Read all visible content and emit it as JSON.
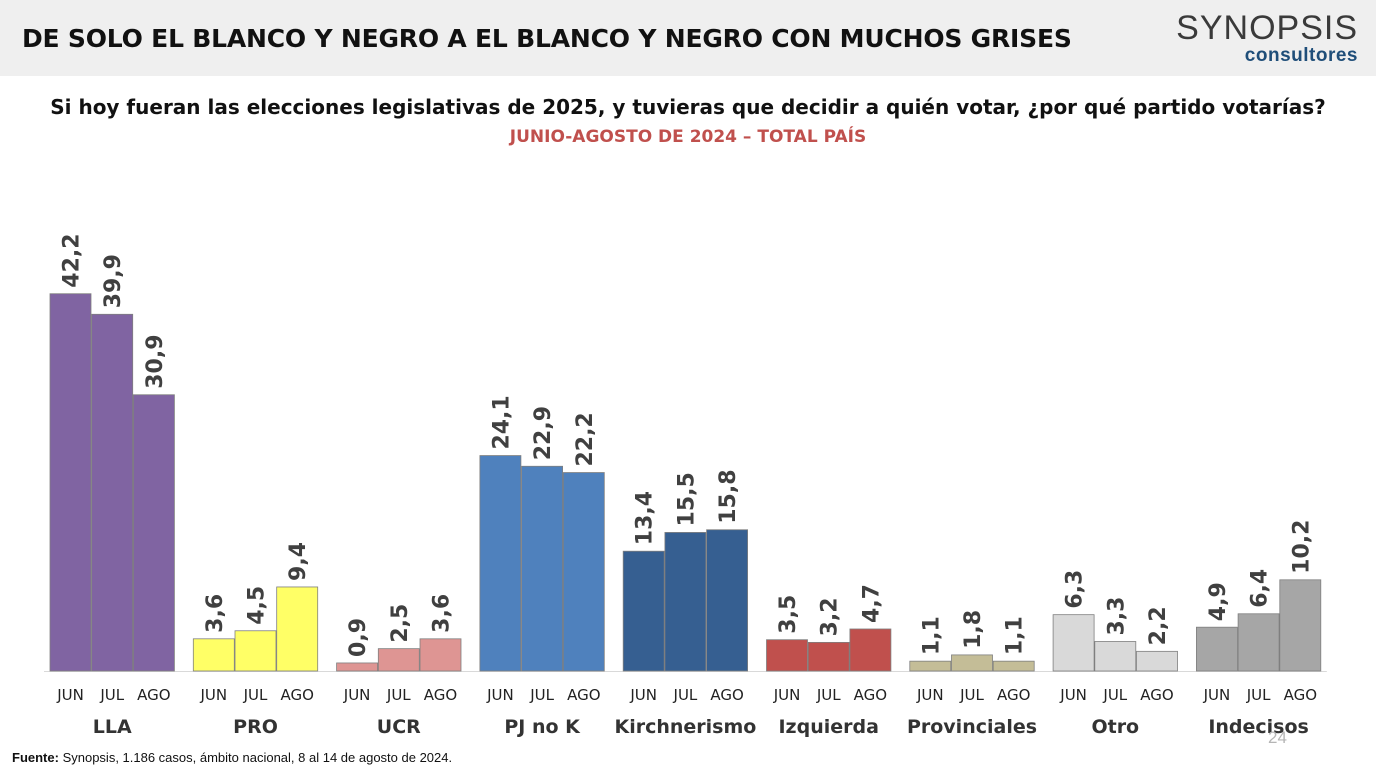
{
  "header": {
    "headline": "DE SOLO EL BLANCO Y NEGRO A EL BLANCO Y NEGRO CON MUCHOS GRISES",
    "logo_main": "SYNOPSIS",
    "logo_sub": "consultores"
  },
  "chart_data": {
    "type": "bar",
    "title": "Si hoy fueran las elecciones legislativas de 2025, y tuvieras que decidir a quién votar, ¿por qué partido votarías?",
    "subtitle": "JUNIO-AGOSTO DE 2024 – TOTAL PAÍS",
    "month_labels": [
      "JUN",
      "JUL",
      "AGO"
    ],
    "ylim": [
      0,
      45
    ],
    "grid": false,
    "groups": [
      {
        "name": "LLA",
        "values": [
          42.2,
          39.9,
          30.9
        ],
        "labels": [
          "42,2",
          "39,9",
          "30,9"
        ],
        "color": "#8064a2"
      },
      {
        "name": "PRO",
        "values": [
          3.6,
          4.5,
          9.4
        ],
        "labels": [
          "3,6",
          "4,5",
          "9,4"
        ],
        "color": "#ffff66"
      },
      {
        "name": "UCR",
        "values": [
          0.9,
          2.5,
          3.6
        ],
        "labels": [
          "0,9",
          "2,5",
          "3,6"
        ],
        "color": "#de9593"
      },
      {
        "name": "PJ no K",
        "values": [
          24.1,
          22.9,
          22.2
        ],
        "labels": [
          "24,1",
          "22,9",
          "22,2"
        ],
        "color": "#4f81bd"
      },
      {
        "name": "Kirchnerismo",
        "values": [
          13.4,
          15.5,
          15.8
        ],
        "labels": [
          "13,4",
          "15,5",
          "15,8"
        ],
        "color": "#365f91"
      },
      {
        "name": "Izquierda",
        "values": [
          3.5,
          3.2,
          4.7
        ],
        "labels": [
          "3,5",
          "3,2",
          "4,7"
        ],
        "color": "#c0504d"
      },
      {
        "name": "Provinciales",
        "values": [
          1.1,
          1.8,
          1.1
        ],
        "labels": [
          "1,1",
          "1,8",
          "1,1"
        ],
        "color": "#c4bd97"
      },
      {
        "name": "Otro",
        "values": [
          6.3,
          3.3,
          2.2
        ],
        "labels": [
          "6,3",
          "3,3",
          "2,2"
        ],
        "color": "#d9d9d9"
      },
      {
        "name": "Indecisos",
        "values": [
          4.9,
          6.4,
          10.2
        ],
        "labels": [
          "4,9",
          "6,4",
          "10,2"
        ],
        "color": "#a6a6a6"
      }
    ]
  },
  "footer": {
    "source_label": "Fuente:",
    "source_text": " Synopsis, 1.186 casos, ámbito nacional, 8 al 14 de agosto de 2024.",
    "page_number": "24"
  }
}
